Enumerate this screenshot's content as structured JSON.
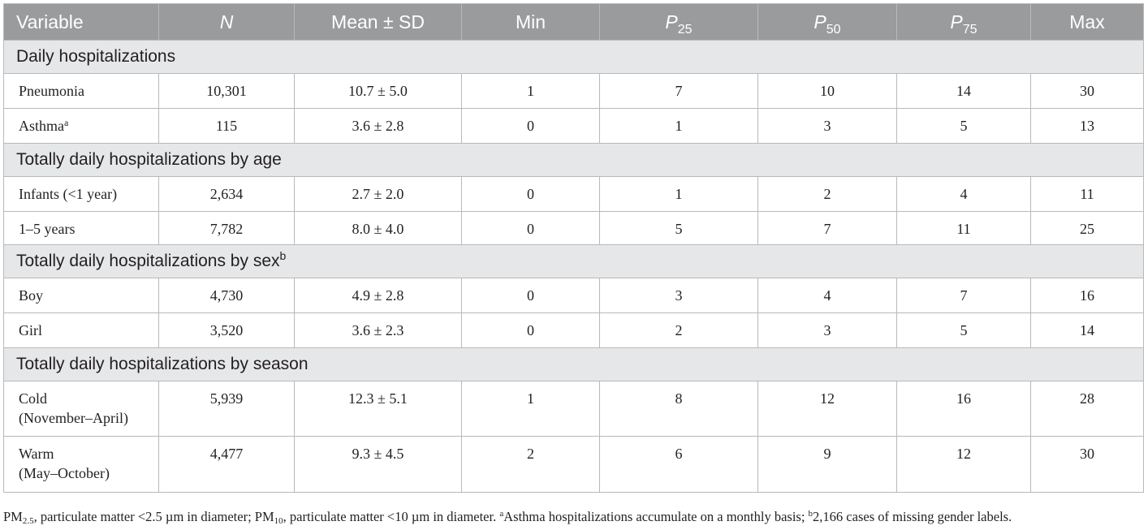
{
  "header": {
    "variable": "Variable",
    "n": "N",
    "mean_sd": "Mean ± SD",
    "min": "Min",
    "p25": {
      "letter": "P",
      "sub": "25"
    },
    "p50": {
      "letter": "P",
      "sub": "50"
    },
    "p75": {
      "letter": "P",
      "sub": "75"
    },
    "max": "Max"
  },
  "sections": [
    {
      "title": "Daily hospitalizations",
      "sup": "",
      "rows": [
        {
          "label": "Pneumonia",
          "sup": "",
          "n": "10,301",
          "mean_sd": "10.7 ± 5.0",
          "min": "1",
          "p25": "7",
          "p50": "10",
          "p75": "14",
          "max": "30"
        },
        {
          "label": "Asthma",
          "sup": "a",
          "n": "115",
          "mean_sd": "3.6 ± 2.8",
          "min": "0",
          "p25": "1",
          "p50": "3",
          "p75": "5",
          "max": "13"
        }
      ]
    },
    {
      "title": "Totally daily hospitalizations by age",
      "sup": "",
      "rows": [
        {
          "label": "Infants (<1 year)",
          "sup": "",
          "n": "2,634",
          "mean_sd": "2.7 ± 2.0",
          "min": "0",
          "p25": "1",
          "p50": "2",
          "p75": "4",
          "max": "11"
        },
        {
          "label": "1–5 years",
          "sup": "",
          "n": "7,782",
          "mean_sd": "8.0 ± 4.0",
          "min": "0",
          "p25": "5",
          "p50": "7",
          "p75": "11",
          "max": "25"
        }
      ]
    },
    {
      "title": "Totally daily hospitalizations by sex",
      "sup": "b",
      "rows": [
        {
          "label": "Boy",
          "sup": "",
          "n": "4,730",
          "mean_sd": "4.9 ± 2.8",
          "min": "0",
          "p25": "3",
          "p50": "4",
          "p75": "7",
          "max": "16"
        },
        {
          "label": "Girl",
          "sup": "",
          "n": "3,520",
          "mean_sd": "3.6 ± 2.3",
          "min": "0",
          "p25": "2",
          "p50": "3",
          "p75": "5",
          "max": "14"
        }
      ]
    },
    {
      "title": "Totally daily hospitalizations by season",
      "sup": "",
      "rows": [
        {
          "label_lines": [
            "Cold",
            "(November–April)"
          ],
          "n": "5,939",
          "mean_sd": "12.3 ± 5.1",
          "min": "1",
          "p25": "8",
          "p50": "12",
          "p75": "16",
          "max": "28"
        },
        {
          "label_lines": [
            "Warm",
            "(May–October)"
          ],
          "n": "4,477",
          "mean_sd": "9.3 ± 4.5",
          "min": "2",
          "p25": "6",
          "p50": "9",
          "p75": "12",
          "max": "30"
        }
      ]
    }
  ],
  "footnote": {
    "pm25_prefix": "PM",
    "pm25_sub": "2.5",
    "pm25_text": ", particulate matter <2.5 µm in diameter; ",
    "pm10_prefix": "PM",
    "pm10_sub": "10",
    "pm10_text": ", particulate matter <10 µm in diameter. ",
    "note_a_mark": "a",
    "note_a_text": "Asthma hospitalizations accumulate on a monthly basis; ",
    "note_b_mark": "b",
    "note_b_text": "2,166 cases of missing gender labels."
  }
}
